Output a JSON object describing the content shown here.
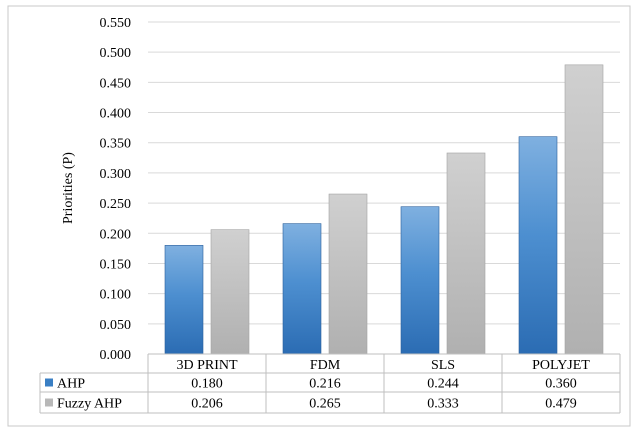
{
  "chart_data": {
    "type": "bar",
    "title": "",
    "xlabel": "",
    "ylabel": "Priorities (P)",
    "ylim": [
      0,
      0.55
    ],
    "yticks": [
      "0.000",
      "0.050",
      "0.100",
      "0.150",
      "0.200",
      "0.250",
      "0.300",
      "0.350",
      "0.400",
      "0.450",
      "0.500",
      "0.550"
    ],
    "grid": true,
    "legend": "data table below chart",
    "categories": [
      "3D PRINT",
      "FDM",
      "SLS",
      "POLYJET"
    ],
    "series": [
      {
        "name": "AHP",
        "color": "#3a7fc4",
        "values": [
          0.18,
          0.216,
          0.244,
          0.36
        ],
        "labels": [
          "0.180",
          "0.216",
          "0.244",
          "0.360"
        ]
      },
      {
        "name": "Fuzzy AHP",
        "color": "#b8b8b8",
        "values": [
          0.206,
          0.265,
          0.333,
          0.479
        ],
        "labels": [
          "0.206",
          "0.265",
          "0.333",
          "0.479"
        ]
      }
    ]
  }
}
